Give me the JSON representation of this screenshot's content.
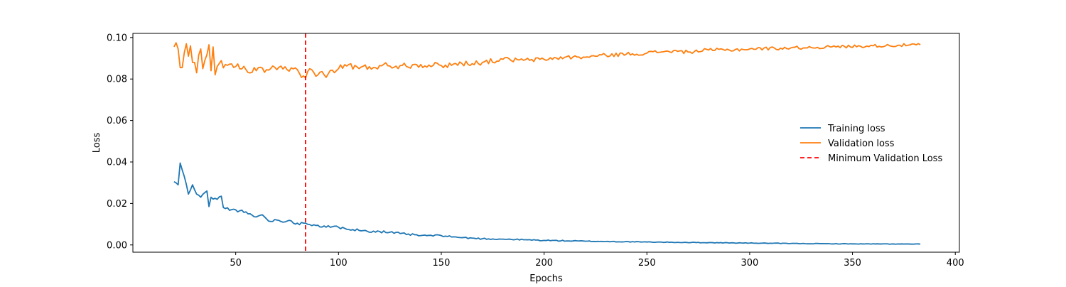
{
  "chart_data": {
    "type": "line",
    "xlabel": "Epochs",
    "ylabel": "Loss",
    "xlim": [
      0,
      402
    ],
    "ylim": [
      -0.0035,
      0.102
    ],
    "xticks": [
      50,
      100,
      150,
      200,
      250,
      300,
      350,
      400
    ],
    "yticks": [
      0.0,
      0.02,
      0.04,
      0.06,
      0.08,
      0.1
    ],
    "ytick_labels": [
      "0.00",
      "0.02",
      "0.04",
      "0.06",
      "0.08",
      "0.10"
    ],
    "grid": false,
    "legend_position": "center-right",
    "legend": [
      "Training loss",
      "Validation loss",
      "Minimum Validation Loss"
    ],
    "x_start": 20,
    "x_end": 383,
    "series": [
      {
        "name": "Training loss",
        "color": "#1f77b4",
        "anchors": [
          [
            20,
            0.0305
          ],
          [
            22,
            0.029
          ],
          [
            23,
            0.0395
          ],
          [
            25,
            0.033
          ],
          [
            27,
            0.0245
          ],
          [
            29,
            0.029
          ],
          [
            31,
            0.0245
          ],
          [
            33,
            0.023
          ],
          [
            36,
            0.026
          ],
          [
            37,
            0.0185
          ],
          [
            38,
            0.023
          ],
          [
            41,
            0.022
          ],
          [
            43,
            0.0235
          ],
          [
            44,
            0.018
          ],
          [
            48,
            0.017
          ],
          [
            52,
            0.0165
          ],
          [
            56,
            0.015
          ],
          [
            60,
            0.0135
          ],
          [
            63,
            0.0145
          ],
          [
            66,
            0.0115
          ],
          [
            70,
            0.012
          ],
          [
            75,
            0.0115
          ],
          [
            80,
            0.0105
          ],
          [
            84,
            0.0105
          ],
          [
            90,
            0.0095
          ],
          [
            96,
            0.0085
          ],
          [
            102,
            0.0085
          ],
          [
            110,
            0.007
          ],
          [
            120,
            0.0065
          ],
          [
            130,
            0.0055
          ],
          [
            140,
            0.0045
          ],
          [
            150,
            0.0045
          ],
          [
            160,
            0.0035
          ],
          [
            170,
            0.003
          ],
          [
            180,
            0.0028
          ],
          [
            190,
            0.0025
          ],
          [
            200,
            0.0022
          ],
          [
            220,
            0.0018
          ],
          [
            250,
            0.0014
          ],
          [
            280,
            0.0011
          ],
          [
            300,
            0.0009
          ],
          [
            320,
            0.0007
          ],
          [
            350,
            0.0005
          ],
          [
            383,
            0.0004
          ]
        ],
        "noise": [
          [
            20,
            0.0006
          ],
          [
            90,
            0.0008
          ],
          [
            150,
            0.0004
          ],
          [
            250,
            0.00015
          ],
          [
            383,
            0.0001
          ]
        ]
      },
      {
        "name": "Validation loss",
        "color": "#ff7f0e",
        "anchors": [
          [
            20,
            0.0955
          ],
          [
            21,
            0.0975
          ],
          [
            22,
            0.0945
          ],
          [
            23,
            0.0855
          ],
          [
            24,
            0.0855
          ],
          [
            26,
            0.097
          ],
          [
            27,
            0.091
          ],
          [
            28,
            0.096
          ],
          [
            29,
            0.088
          ],
          [
            30,
            0.088
          ],
          [
            31,
            0.083
          ],
          [
            32,
            0.0915
          ],
          [
            33,
            0.0945
          ],
          [
            34,
            0.085
          ],
          [
            35,
            0.089
          ],
          [
            37,
            0.0965
          ],
          [
            38,
            0.084
          ],
          [
            39,
            0.0955
          ],
          [
            40,
            0.082
          ],
          [
            42,
            0.0875
          ],
          [
            45,
            0.087
          ],
          [
            50,
            0.086
          ],
          [
            55,
            0.0845
          ],
          [
            60,
            0.084
          ],
          [
            65,
            0.0845
          ],
          [
            70,
            0.0845
          ],
          [
            75,
            0.0845
          ],
          [
            80,
            0.0845
          ],
          [
            83,
            0.0815
          ],
          [
            84,
            0.0805
          ],
          [
            86,
            0.085
          ],
          [
            90,
            0.082
          ],
          [
            95,
            0.0825
          ],
          [
            100,
            0.085
          ],
          [
            105,
            0.087
          ],
          [
            110,
            0.085
          ],
          [
            120,
            0.0865
          ],
          [
            130,
            0.0865
          ],
          [
            140,
            0.087
          ],
          [
            150,
            0.0865
          ],
          [
            160,
            0.0875
          ],
          [
            170,
            0.088
          ],
          [
            180,
            0.0895
          ],
          [
            190,
            0.089
          ],
          [
            200,
            0.0895
          ],
          [
            210,
            0.0905
          ],
          [
            220,
            0.0905
          ],
          [
            230,
            0.0915
          ],
          [
            240,
            0.092
          ],
          [
            250,
            0.0925
          ],
          [
            260,
            0.0935
          ],
          [
            270,
            0.093
          ],
          [
            280,
            0.094
          ],
          [
            290,
            0.094
          ],
          [
            300,
            0.0945
          ],
          [
            320,
            0.095
          ],
          [
            340,
            0.0955
          ],
          [
            360,
            0.096
          ],
          [
            383,
            0.0965
          ]
        ],
        "noise": [
          [
            20,
            0.0035
          ],
          [
            45,
            0.0018
          ],
          [
            90,
            0.0018
          ],
          [
            140,
            0.0015
          ],
          [
            200,
            0.001
          ],
          [
            300,
            0.0008
          ],
          [
            383,
            0.0007
          ]
        ]
      }
    ],
    "vlines": [
      {
        "name": "Minimum Validation Loss",
        "x": 84,
        "color": "#ff0000",
        "style": "dashed"
      }
    ]
  }
}
